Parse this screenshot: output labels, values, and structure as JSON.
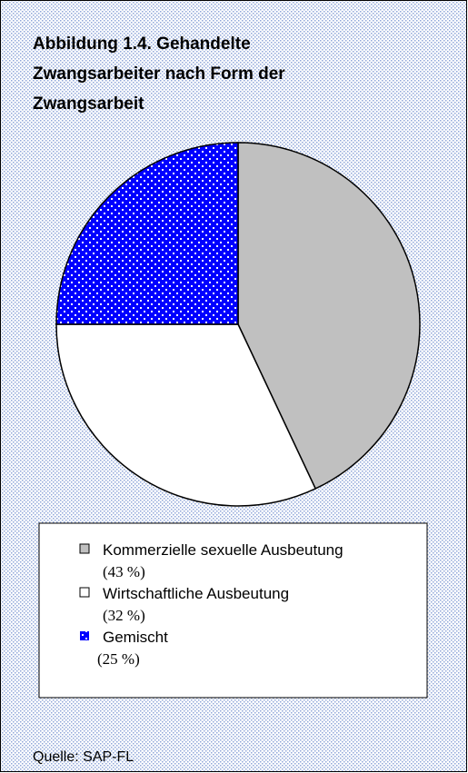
{
  "chart_data": {
    "type": "pie",
    "title": "Abbildung 1.4. Gehandelte Zwangsarbeiter nach Form der Zwangsarbeit",
    "categories": [
      "Kommerzielle sexuelle Ausbeutung",
      "Wirtschaftliche Ausbeutung",
      "Gemischt"
    ],
    "values": [
      43,
      32,
      25
    ],
    "value_labels": [
      "(43 %)",
      "(32 %)",
      "(25 %)"
    ],
    "colors": [
      "#c0c0c0",
      "#ffffff",
      "#0000ff"
    ],
    "source": "Quelle: SAP-FL"
  }
}
